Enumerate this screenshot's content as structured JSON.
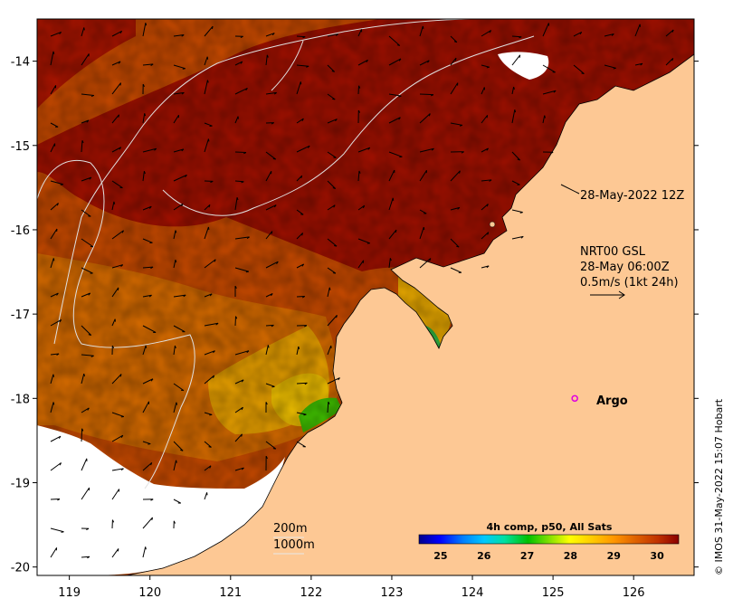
{
  "axes": {
    "x_ticks": [
      "119",
      "120",
      "121",
      "122",
      "123",
      "124",
      "125",
      "126"
    ],
    "y_ticks": [
      "-14",
      "-15",
      "-16",
      "-17",
      "-18",
      "-19",
      "-20"
    ],
    "x_values": [
      119,
      120,
      121,
      122,
      123,
      124,
      125,
      126
    ],
    "y_values": [
      -14,
      -15,
      -16,
      -17,
      -18,
      -19,
      -20
    ],
    "xlim": [
      118.6,
      126.75
    ],
    "ylim": [
      -20.1,
      -13.5
    ]
  },
  "annotations": {
    "altimetry_date": "28-May-2022 12Z",
    "current_product": "NRT00 GSL",
    "current_time": "28-May 06:00Z",
    "scale_text": "0.5m/s (1kt 24h)",
    "isobath_200": "200m",
    "isobath_1000": "1000m"
  },
  "argo": {
    "label": "Argo",
    "lon": 125.27,
    "lat": -18.0,
    "color": "#e000e0"
  },
  "colorbar": {
    "title": "4h comp, p50, All Sats",
    "tick_labels": [
      "25",
      "26",
      "27",
      "28",
      "29",
      "30"
    ],
    "tick_values": [
      25,
      26,
      27,
      28,
      29,
      30
    ],
    "range": [
      24.5,
      30.5
    ],
    "colors": [
      "#00008b",
      "#0000ff",
      "#0080ff",
      "#00c8ff",
      "#00e0a0",
      "#00c000",
      "#80e000",
      "#ffff00",
      "#ffc800",
      "#ff9600",
      "#e06400",
      "#c03200",
      "#8b0000"
    ]
  },
  "credit": "© IMOS 31-May-2022 15:07 Hobart",
  "colors": {
    "land": "#fdc894",
    "no_data": "#ffffff",
    "sst_warmest": "#a01000",
    "sst_warm": "#c84a00",
    "sst_mid": "#e09000",
    "sst_cool": "#f0c000",
    "sst_cold": "#40c000"
  }
}
